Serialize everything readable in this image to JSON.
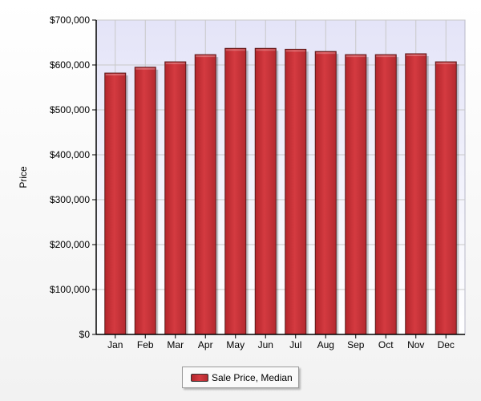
{
  "chart_data": {
    "type": "bar",
    "categories": [
      "Jan",
      "Feb",
      "Mar",
      "Apr",
      "May",
      "Jun",
      "Jul",
      "Aug",
      "Sep",
      "Oct",
      "Nov",
      "Dec"
    ],
    "series": [
      {
        "name": "Sale Price, Median",
        "values": [
          582000,
          595000,
          607000,
          623000,
          637000,
          637000,
          635000,
          630000,
          623000,
          623000,
          625000,
          607000
        ],
        "color": "#cc2f35"
      }
    ],
    "ylabel": "Price",
    "ylim": [
      0,
      700000
    ],
    "yticks": [
      "$0",
      "$100,000",
      "$200,000",
      "$300,000",
      "$400,000",
      "$500,000",
      "$600,000",
      "$700,000"
    ],
    "grid": true,
    "legend_position": "bottom-center",
    "colors": {
      "plot_background": "#e8e8f8",
      "bar_fill": "#cc2f35",
      "bar_edge": "#5a1a1a",
      "grid": "#c8c8c8",
      "axis": "#000000"
    }
  }
}
